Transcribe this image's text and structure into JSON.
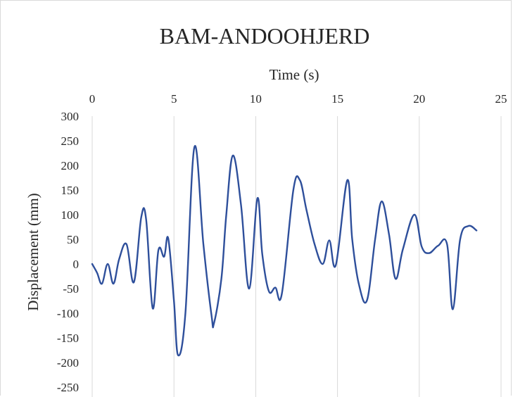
{
  "chart_data": {
    "type": "line",
    "title": "BAM-ANDOOHJERD",
    "xlabel": "Time (s)",
    "ylabel": "Displacement (mm)",
    "xlim": [
      0,
      25
    ],
    "ylim": [
      -250,
      300
    ],
    "x_ticks": [
      "0",
      "5",
      "10",
      "15",
      "20",
      "25"
    ],
    "y_ticks": [
      "300",
      "250",
      "200",
      "150",
      "100",
      "50",
      "0",
      "-50",
      "-100",
      "-150",
      "-200",
      "-250"
    ],
    "x_axis_position": "top",
    "grid": "vertical",
    "color": "#2e4f9b",
    "series": [
      {
        "x": [
          0,
          0.3,
          0.6,
          0.95,
          1.3,
          1.65,
          2.1,
          2.55,
          3.0,
          3.3,
          3.7,
          4.05,
          4.4,
          4.65,
          5.0,
          5.25,
          5.7,
          6.25,
          6.8,
          7.3,
          7.45,
          7.9,
          8.2,
          8.6,
          9.1,
          9.6,
          10.1,
          10.4,
          10.8,
          11.2,
          11.6,
          12.3,
          12.7,
          13.1,
          13.6,
          14.1,
          14.5,
          14.9,
          15.6,
          15.9,
          16.3,
          16.8,
          17.3,
          17.7,
          18.15,
          18.55,
          19.0,
          19.7,
          20.15,
          20.6,
          21.15,
          21.7,
          22.05,
          22.5,
          23.0,
          23.5
        ],
        "y": [
          0,
          -18,
          -40,
          0,
          -40,
          10,
          40,
          -37,
          95,
          90,
          -90,
          28,
          15,
          52,
          -75,
          -185,
          -100,
          237,
          40,
          -105,
          -120,
          -30,
          100,
          220,
          120,
          -50,
          133,
          20,
          -55,
          -48,
          -60,
          150,
          170,
          110,
          40,
          0,
          48,
          -2,
          170,
          50,
          -40,
          -74,
          50,
          127,
          60,
          -30,
          30,
          100,
          35,
          22,
          37,
          40,
          -92,
          50,
          77,
          68
        ]
      }
    ]
  }
}
